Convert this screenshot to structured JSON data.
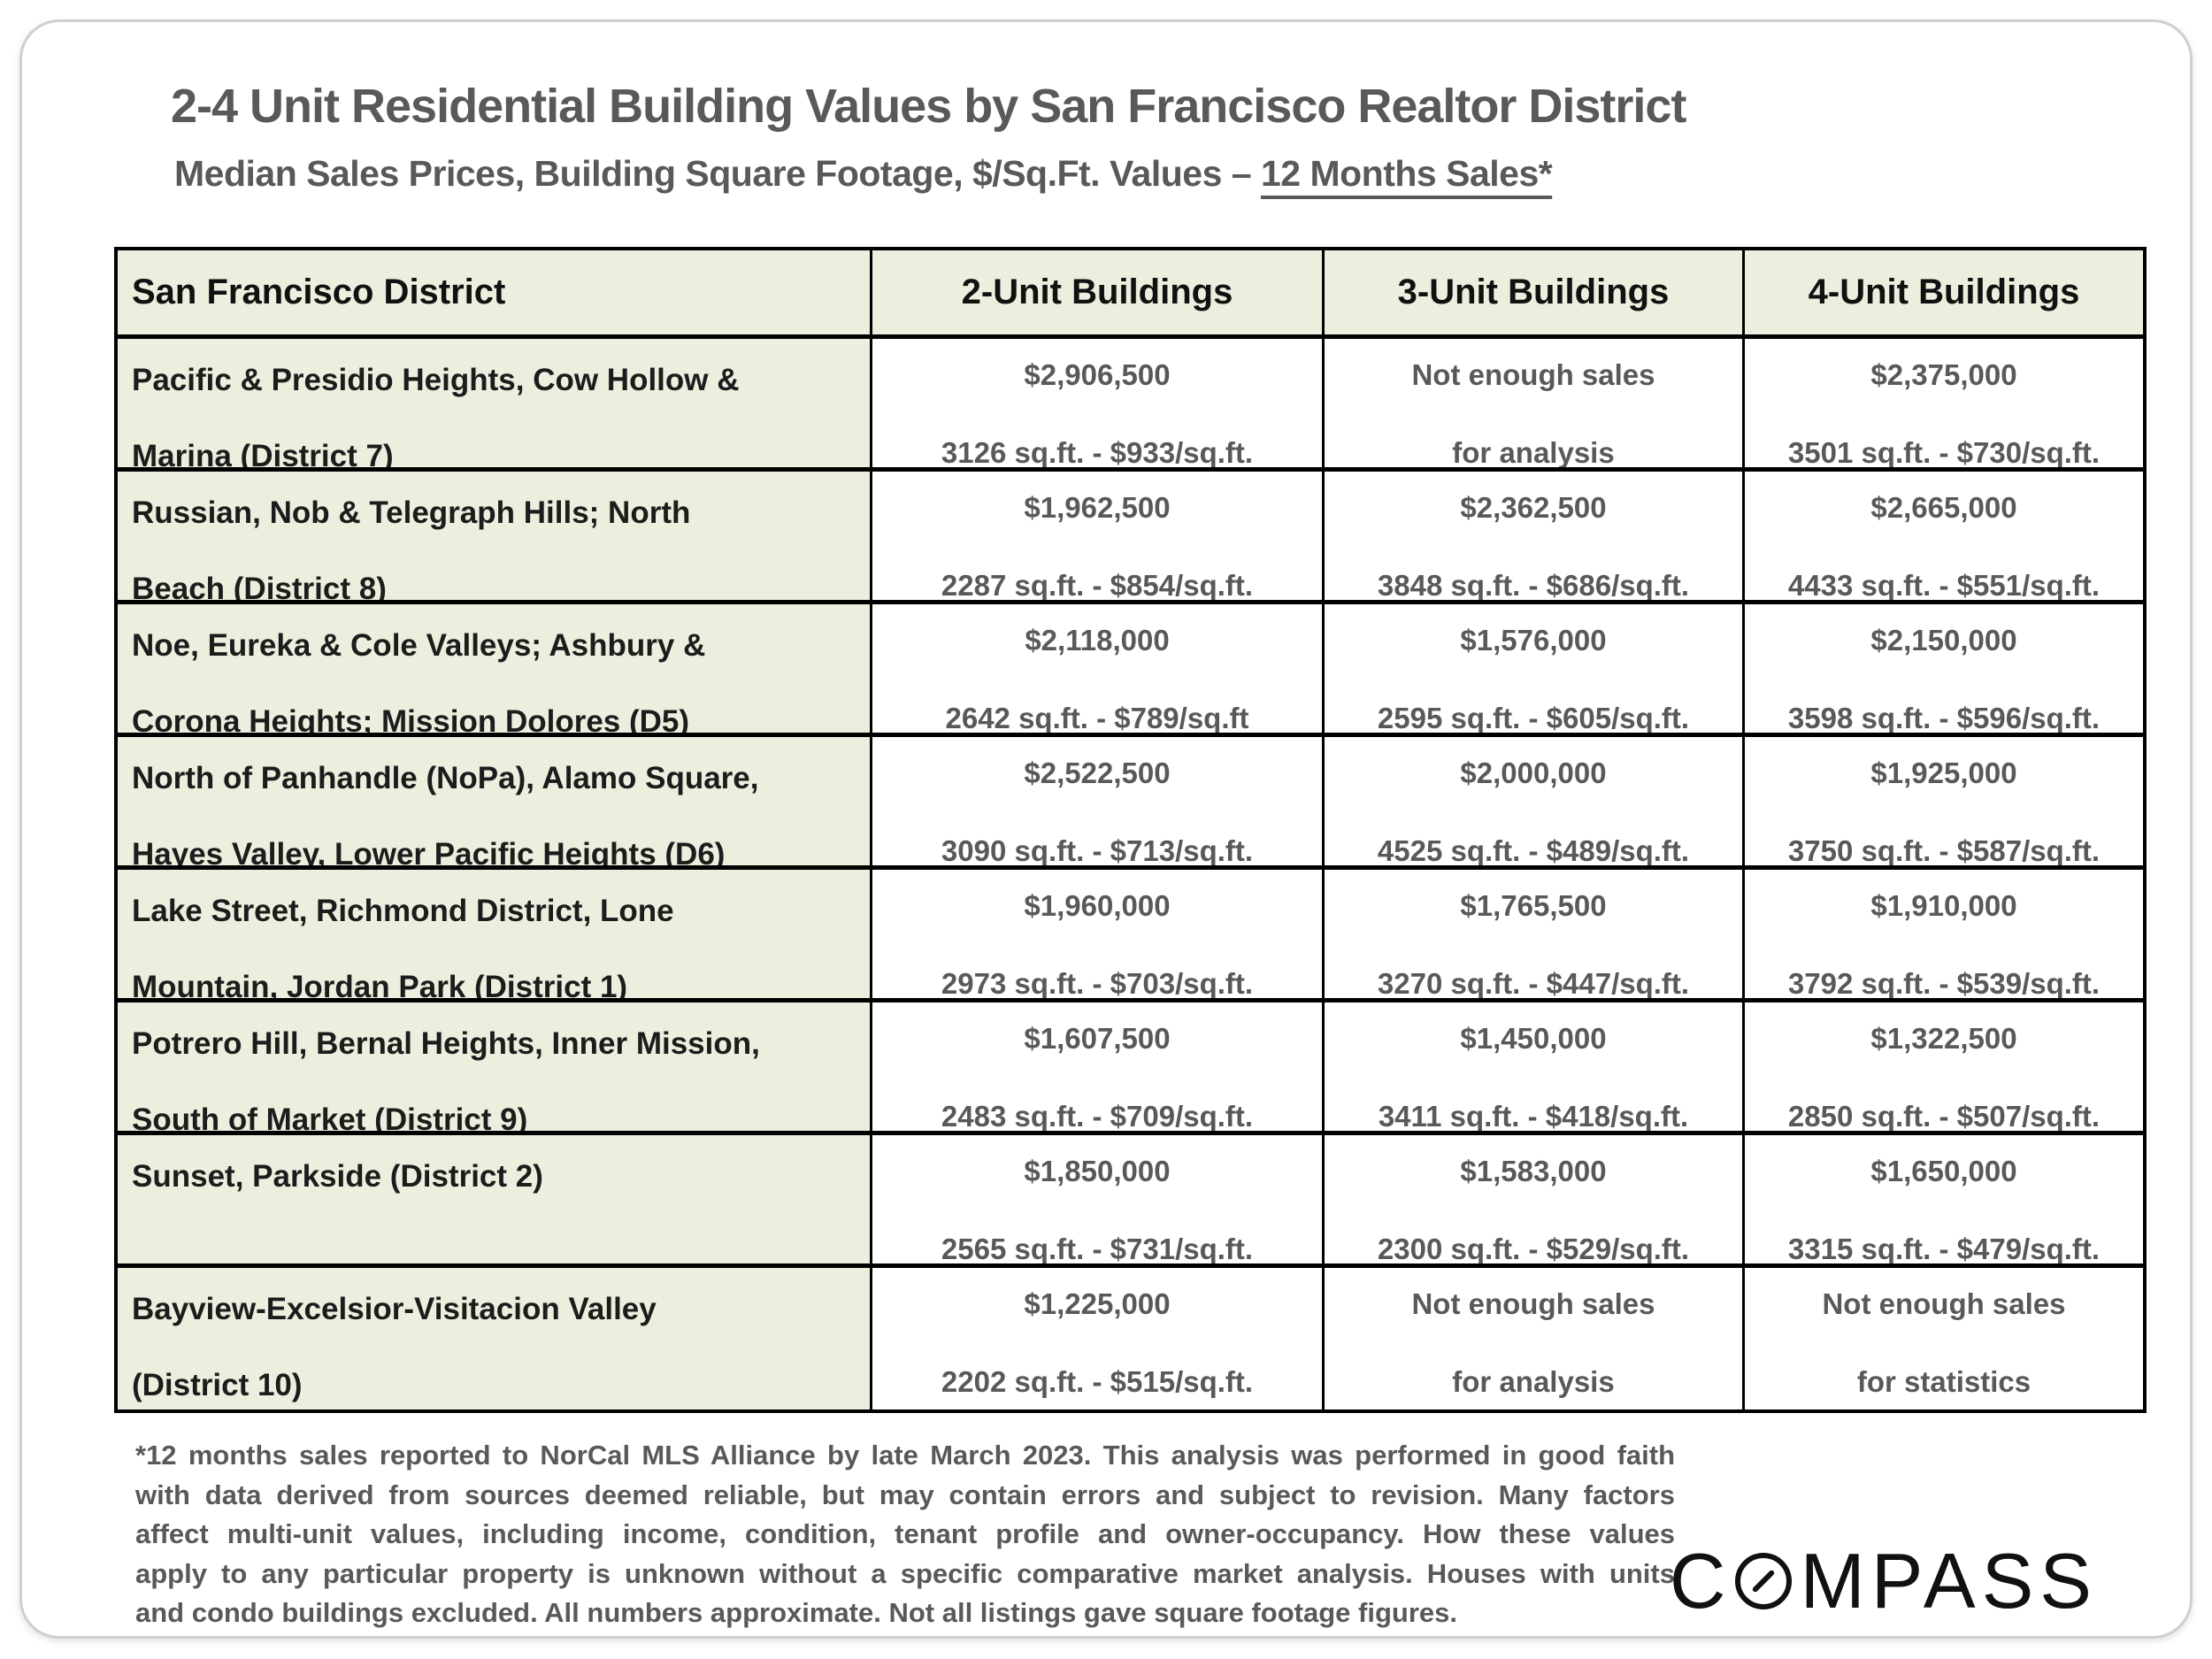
{
  "title": "2-4 Unit Residential Building Values by San Francisco Realtor District",
  "subtitle": {
    "prefix": "Median Sales Prices, Building Square Footage, $/Sq.Ft. Values – ",
    "underlined": "12 Months Sales*"
  },
  "colors": {
    "header_fill": "#ebefde",
    "district_fill": "#ebefde",
    "table_border": "#000000",
    "title_text": "#595959",
    "data_text": "#595959",
    "district_text": "#1c1c1c"
  },
  "table": {
    "headers": [
      "San Francisco District",
      "2-Unit Buildings",
      "3-Unit Buildings",
      "4-Unit Buildings"
    ],
    "rows": [
      {
        "district": "Pacific & Presidio Heights, Cow Hollow &\nMarina (District 7)",
        "unit2": {
          "price": "$2,906,500",
          "detail": "3126 sq.ft. - $933/sq.ft."
        },
        "unit3": {
          "price": "Not enough sales",
          "detail": "for analysis"
        },
        "unit4": {
          "price": "$2,375,000",
          "detail": "3501 sq.ft. - $730/sq.ft."
        }
      },
      {
        "district": "Russian, Nob & Telegraph Hills; North\nBeach (District 8)",
        "unit2": {
          "price": "$1,962,500",
          "detail": "2287 sq.ft. - $854/sq.ft."
        },
        "unit3": {
          "price": "$2,362,500",
          "detail": "3848 sq.ft. - $686/sq.ft."
        },
        "unit4": {
          "price": "$2,665,000",
          "detail": "4433 sq.ft. - $551/sq.ft."
        }
      },
      {
        "district": "Noe, Eureka & Cole Valleys; Ashbury &\nCorona Heights; Mission Dolores (D5)",
        "unit2": {
          "price": "$2,118,000",
          "detail": "2642 sq.ft. - $789/sq.ft"
        },
        "unit3": {
          "price": "$1,576,000",
          "detail": "2595 sq.ft. - $605/sq.ft."
        },
        "unit4": {
          "price": "$2,150,000",
          "detail": "3598 sq.ft. - $596/sq.ft."
        }
      },
      {
        "district": "North of Panhandle (NoPa), Alamo Square,\nHayes Valley, Lower Pacific Heights (D6)",
        "unit2": {
          "price": "$2,522,500",
          "detail": "3090 sq.ft. - $713/sq.ft."
        },
        "unit3": {
          "price": "$2,000,000",
          "detail": "4525 sq.ft. - $489/sq.ft."
        },
        "unit4": {
          "price": "$1,925,000",
          "detail": "3750 sq.ft. - $587/sq.ft."
        }
      },
      {
        "district": "Lake Street, Richmond District, Lone\nMountain, Jordan Park (District 1)",
        "unit2": {
          "price": "$1,960,000",
          "detail": "2973 sq.ft. - $703/sq.ft."
        },
        "unit3": {
          "price": "$1,765,500",
          "detail": "3270 sq.ft. - $447/sq.ft."
        },
        "unit4": {
          "price": "$1,910,000",
          "detail": "3792 sq.ft. - $539/sq.ft."
        }
      },
      {
        "district": "Potrero Hill, Bernal Heights, Inner Mission,\nSouth of Market (District 9)",
        "unit2": {
          "price": "$1,607,500",
          "detail": "2483 sq.ft. - $709/sq.ft."
        },
        "unit3": {
          "price": "$1,450,000",
          "detail": "3411 sq.ft. - $418/sq.ft."
        },
        "unit4": {
          "price": "$1,322,500",
          "detail": "2850 sq.ft. - $507/sq.ft."
        }
      },
      {
        "district": "Sunset, Parkside (District 2)",
        "unit2": {
          "price": "$1,850,000",
          "detail": "2565 sq.ft. - $731/sq.ft."
        },
        "unit3": {
          "price": "$1,583,000",
          "detail": "2300 sq.ft. - $529/sq.ft."
        },
        "unit4": {
          "price": "$1,650,000",
          "detail": "3315 sq.ft. - $479/sq.ft."
        }
      },
      {
        "district": "Bayview-Excelsior-Visitacion Valley\n (District 10)",
        "unit2": {
          "price": "$1,225,000",
          "detail": "2202 sq.ft. - $515/sq.ft."
        },
        "unit3": {
          "price": "Not enough sales",
          "detail": "for analysis"
        },
        "unit4": {
          "price": "Not enough sales",
          "detail": "for statistics"
        }
      }
    ]
  },
  "footnote": {
    "lines": [
      "*12 months sales reported to NorCal MLS Alliance by late March 2023. This analysis was performed in good faith",
      "with data derived from sources deemed reliable, but may contain errors and subject to revision. Many factors",
      "affect multi-unit values, including income, condition, tenant profile and owner-occupancy. How these values",
      "apply to any particular property is unknown without a specific comparative market analysis. Houses with units",
      "and condo buildings excluded. All numbers approximate. Not all listings gave square footage figures."
    ]
  },
  "logo": {
    "name": "COMPASS",
    "part1": "C",
    "part2": "MPASS"
  }
}
